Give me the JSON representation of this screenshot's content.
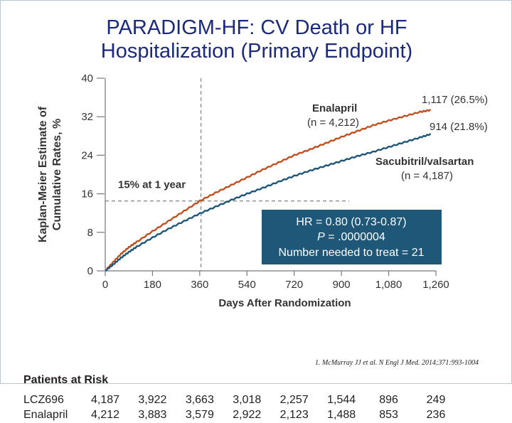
{
  "slide": {
    "title_line1": "PARADIGM-HF: CV Death or HF",
    "title_line2": "Hospitalization (Primary Endpoint)",
    "citation": "1. McMurray JJ et al. N Engl J Med. 2014;371:993-1004"
  },
  "colors": {
    "enalapril": "#c0501f",
    "sacubitril": "#1f5778",
    "hr_box": "#1f5778",
    "title": "#1b2a7a"
  },
  "chart_data": {
    "type": "line",
    "xlabel": "Days After Randomization",
    "ylabel_line1": "Kaplan-Meier Estimate of",
    "ylabel_line2": "Cumulative Rates, %",
    "xlim": [
      0,
      1260
    ],
    "ylim": [
      0,
      40
    ],
    "xticks": [
      0,
      180,
      360,
      540,
      720,
      900,
      1080,
      1260
    ],
    "xtick_labels": [
      "0",
      "180",
      "360",
      "540",
      "720",
      "900",
      "1,080",
      "1,260"
    ],
    "yticks": [
      0,
      8,
      16,
      24,
      32,
      40
    ],
    "ytick_labels": [
      "0",
      "8",
      "16",
      "24",
      "32",
      "40"
    ],
    "reference_x": 365,
    "reference_y": 14.5,
    "reference_label": "15% at 1 year",
    "series": [
      {
        "name": "Enalapril",
        "label_line1": "Enalapril",
        "label_line2": "(n = 4,212)",
        "end_label": "1,117 (26.5%)",
        "x": [
          0,
          30,
          60,
          90,
          120,
          180,
          240,
          300,
          360,
          420,
          480,
          540,
          600,
          660,
          720,
          780,
          840,
          900,
          960,
          1020,
          1080,
          1140,
          1200,
          1240
        ],
        "y": [
          0,
          1.8,
          3.5,
          4.9,
          6.0,
          8.2,
          10.3,
          12.4,
          14.5,
          16.2,
          17.8,
          19.4,
          21.0,
          22.5,
          24.0,
          25.2,
          26.5,
          27.8,
          29.0,
          30.2,
          31.2,
          32.1,
          33.0,
          33.4
        ]
      },
      {
        "name": "Sacubitril/valsartan",
        "label_line1": "Sacubitril/valsartan",
        "label_line2": "(n = 4,187)",
        "end_label": "914 (21.8%)",
        "x": [
          0,
          30,
          60,
          90,
          120,
          180,
          240,
          300,
          360,
          420,
          480,
          540,
          600,
          660,
          720,
          780,
          840,
          900,
          960,
          1020,
          1080,
          1140,
          1200,
          1240
        ],
        "y": [
          0,
          1.3,
          2.7,
          3.9,
          5.0,
          6.9,
          8.7,
          10.3,
          11.9,
          13.3,
          14.7,
          16.0,
          17.2,
          18.5,
          19.7,
          20.8,
          21.8,
          22.8,
          23.8,
          24.7,
          25.7,
          26.7,
          27.7,
          28.4
        ]
      }
    ],
    "annotation": {
      "line1": "HR = 0.80 (0.73-0.87)",
      "line2_p": "P",
      "line2_rest": " = .0000004",
      "line3": "Number needed to treat = 21"
    }
  },
  "risk_table": {
    "title": "Patients at Risk",
    "rows": [
      {
        "label": "LCZ696",
        "values": [
          "4,187",
          "3,922",
          "3,663",
          "3,018",
          "2,257",
          "1,544",
          "896",
          "249"
        ]
      },
      {
        "label": "Enalapril",
        "values": [
          "4,212",
          "3,883",
          "3,579",
          "2,922",
          "2,123",
          "1,488",
          "853",
          "236"
        ]
      }
    ]
  }
}
